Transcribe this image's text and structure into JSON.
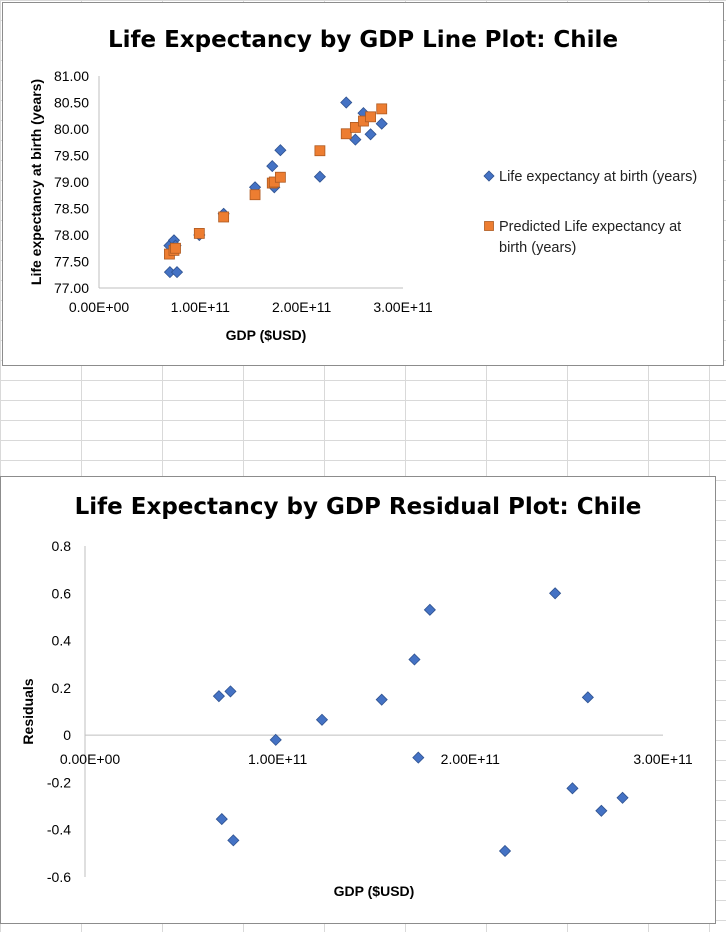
{
  "chart_data": [
    {
      "type": "scatter",
      "title": "Life Expectancy by GDP Line Plot: Chile",
      "xlabel": "GDP ($USD)",
      "ylabel": "Life expectancy at birth (years)",
      "xlim": [
        0,
        300000000000
      ],
      "ylim": [
        77,
        81
      ],
      "x_ticks": [
        "0.00E+00",
        "1.00E+11",
        "2.00E+11",
        "3.00E+11"
      ],
      "y_ticks": [
        "77.00",
        "77.50",
        "78.00",
        "78.50",
        "79.00",
        "79.50",
        "80.00",
        "80.50",
        "81.00"
      ],
      "grid": false,
      "legend_position": "right",
      "series": [
        {
          "name": "Life expectancy at birth (years)",
          "marker": "diamond",
          "color": "#4472C4",
          "points": [
            [
              69500000000,
              77.8
            ],
            [
              70000000000,
              77.3
            ],
            [
              74000000000,
              77.9
            ],
            [
              75500000000,
              77.8
            ],
            [
              77000000000,
              77.3
            ],
            [
              99000000000,
              78.0
            ],
            [
              123000000000,
              78.4
            ],
            [
              154000000000,
              78.9
            ],
            [
              171000000000,
              79.3
            ],
            [
              173000000000,
              78.9
            ],
            [
              179000000000,
              79.6
            ],
            [
              218000000000,
              79.1
            ],
            [
              244000000000,
              80.5
            ],
            [
              253000000000,
              79.8
            ],
            [
              261000000000,
              80.3
            ],
            [
              268000000000,
              79.9
            ],
            [
              279000000000,
              80.1
            ]
          ]
        },
        {
          "name": "Predicted Life expectancy at birth (years)",
          "marker": "square",
          "color": "#ED7D31",
          "points": [
            [
              69500000000,
              77.64
            ],
            [
              74000000000,
              77.71
            ],
            [
              75500000000,
              77.75
            ],
            [
              99000000000,
              78.03
            ],
            [
              123000000000,
              78.34
            ],
            [
              154000000000,
              78.76
            ],
            [
              171000000000,
              78.98
            ],
            [
              173000000000,
              79.0
            ],
            [
              179000000000,
              79.09
            ],
            [
              218000000000,
              79.59
            ],
            [
              244000000000,
              79.91
            ],
            [
              253000000000,
              80.03
            ],
            [
              261000000000,
              80.15
            ],
            [
              268000000000,
              80.23
            ],
            [
              279000000000,
              80.38
            ]
          ]
        }
      ]
    },
    {
      "type": "scatter",
      "title": "Life Expectancy by GDP Residual Plot: Chile",
      "xlabel": "GDP ($USD)",
      "ylabel": "Residuals",
      "xlim": [
        0,
        300000000000
      ],
      "ylim": [
        -0.6,
        0.8
      ],
      "x_ticks": [
        "0.00E+00",
        "1.00E+11",
        "2.00E+11",
        "3.00E+11"
      ],
      "y_ticks": [
        "-0.6",
        "-0.4",
        "-0.2",
        "0",
        "0.2",
        "0.4",
        "0.6",
        "0.8"
      ],
      "grid": false,
      "series": [
        {
          "marker": "diamond",
          "color": "#4472C4",
          "points": [
            [
              69500000000,
              0.165
            ],
            [
              71000000000,
              -0.355
            ],
            [
              75500000000,
              0.185
            ],
            [
              77000000000,
              -0.445
            ],
            [
              99000000000,
              -0.02
            ],
            [
              123000000000,
              0.065
            ],
            [
              154000000000,
              0.15
            ],
            [
              171000000000,
              0.32
            ],
            [
              173000000000,
              -0.095
            ],
            [
              179000000000,
              0.53
            ],
            [
              218000000000,
              -0.49
            ],
            [
              244000000000,
              0.6
            ],
            [
              253000000000,
              -0.225
            ],
            [
              261000000000,
              0.16
            ],
            [
              268000000000,
              -0.32
            ],
            [
              279000000000,
              -0.265
            ]
          ]
        }
      ]
    }
  ],
  "colors": {
    "diamond_fill": "#4472C4",
    "diamond_stroke": "#2F528F",
    "square_fill": "#ED7D31",
    "square_stroke": "#AE5A21",
    "sheet_grid": "#d9d9d9"
  }
}
